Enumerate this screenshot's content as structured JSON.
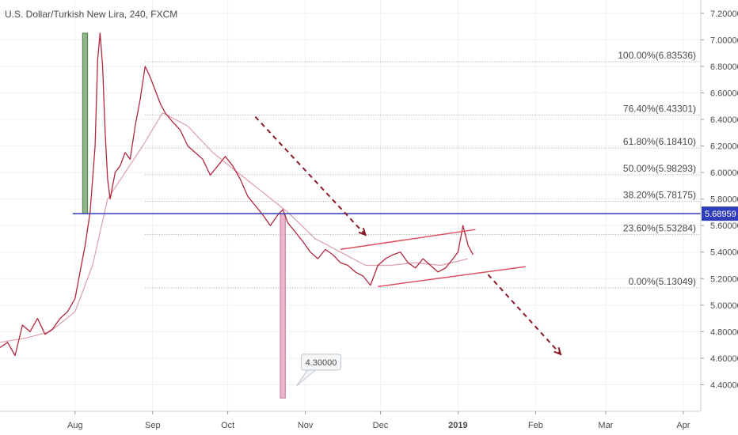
{
  "chart_data": {
    "type": "line",
    "title": "U.S. Dollar/Turkish New Lira, 240, FXCM",
    "x_tick_labels": [
      "Aug",
      "Sep",
      "Oct",
      "Nov",
      "Dec",
      "2019",
      "Feb",
      "Mar",
      "Apr"
    ],
    "x_tick_dates": [
      "2018-08-01",
      "2018-09-01",
      "2018-10-01",
      "2018-11-01",
      "2018-12-01",
      "2019-01-01",
      "2019-02-01",
      "2019-03-01",
      "2019-04-01"
    ],
    "xlim": [
      "2018-07-02",
      "2019-04-08"
    ],
    "ylim": [
      4.2,
      7.3
    ],
    "y_ticks": [
      4.4,
      4.6,
      4.8,
      5.0,
      5.2,
      5.4,
      5.6,
      5.8,
      6.0,
      6.2,
      6.4,
      6.6,
      6.8,
      7.0,
      7.2
    ],
    "y_tick_labels": [
      "4.40000",
      "4.60000",
      "4.80000",
      "5.00000",
      "5.20000",
      "5.40000",
      "5.60000",
      "5.80000",
      "6.00000",
      "6.20000",
      "6.40000",
      "6.60000",
      "6.80000",
      "7.00000",
      "7.20000"
    ],
    "grid": true,
    "price_series": {
      "color": "#b0273e",
      "x": [
        "2018-07-02",
        "2018-07-05",
        "2018-07-08",
        "2018-07-11",
        "2018-07-14",
        "2018-07-17",
        "2018-07-20",
        "2018-07-23",
        "2018-07-26",
        "2018-07-29",
        "2018-08-01",
        "2018-08-03",
        "2018-08-05",
        "2018-08-07",
        "2018-08-09",
        "2018-08-10",
        "2018-08-11",
        "2018-08-12",
        "2018-08-13",
        "2018-08-14",
        "2018-08-15",
        "2018-08-17",
        "2018-08-19",
        "2018-08-21",
        "2018-08-23",
        "2018-08-25",
        "2018-08-27",
        "2018-08-29",
        "2018-08-31",
        "2018-09-02",
        "2018-09-04",
        "2018-09-06",
        "2018-09-09",
        "2018-09-12",
        "2018-09-15",
        "2018-09-18",
        "2018-09-21",
        "2018-09-24",
        "2018-09-27",
        "2018-09-30",
        "2018-10-03",
        "2018-10-06",
        "2018-10-09",
        "2018-10-12",
        "2018-10-15",
        "2018-10-18",
        "2018-10-21",
        "2018-10-23",
        "2018-10-25",
        "2018-10-28",
        "2018-10-31",
        "2018-11-03",
        "2018-11-06",
        "2018-11-09",
        "2018-11-12",
        "2018-11-15",
        "2018-11-18",
        "2018-11-21",
        "2018-11-24",
        "2018-11-27",
        "2018-11-30",
        "2018-12-03",
        "2018-12-06",
        "2018-12-09",
        "2018-12-12",
        "2018-12-15",
        "2018-12-18",
        "2018-12-21",
        "2018-12-24",
        "2018-12-27",
        "2018-12-30",
        "2019-01-01",
        "2019-01-03",
        "2019-01-05",
        "2019-01-07"
      ],
      "y": [
        4.68,
        4.72,
        4.62,
        4.85,
        4.8,
        4.9,
        4.78,
        4.82,
        4.9,
        4.95,
        5.05,
        5.25,
        5.45,
        5.7,
        6.2,
        6.85,
        7.05,
        6.8,
        6.3,
        5.95,
        5.8,
        6.0,
        6.05,
        6.15,
        6.1,
        6.35,
        6.55,
        6.8,
        6.72,
        6.62,
        6.52,
        6.45,
        6.38,
        6.32,
        6.2,
        6.15,
        6.1,
        5.98,
        6.05,
        6.12,
        6.05,
        5.95,
        5.82,
        5.75,
        5.68,
        5.6,
        5.68,
        5.72,
        5.62,
        5.55,
        5.48,
        5.4,
        5.35,
        5.42,
        5.38,
        5.32,
        5.3,
        5.25,
        5.22,
        5.15,
        5.3,
        5.35,
        5.38,
        5.4,
        5.32,
        5.28,
        5.35,
        5.3,
        5.25,
        5.28,
        5.35,
        5.4,
        5.6,
        5.45,
        5.38
      ]
    },
    "moving_average": {
      "color": "#d9a0a8",
      "x": [
        "2018-07-02",
        "2018-07-12",
        "2018-07-22",
        "2018-08-01",
        "2018-08-08",
        "2018-08-14",
        "2018-08-21",
        "2018-08-28",
        "2018-09-05",
        "2018-09-15",
        "2018-09-25",
        "2018-10-05",
        "2018-10-15",
        "2018-10-25",
        "2018-11-05",
        "2018-11-15",
        "2018-11-25",
        "2018-12-05",
        "2018-12-15",
        "2018-12-25",
        "2019-01-05"
      ],
      "y": [
        4.72,
        4.75,
        4.8,
        4.95,
        5.3,
        5.8,
        6.0,
        6.2,
        6.45,
        6.35,
        6.15,
        6.0,
        5.85,
        5.7,
        5.5,
        5.4,
        5.3,
        5.3,
        5.32,
        5.3,
        5.35
      ]
    },
    "horizontal_level": {
      "value": 5.68959,
      "label": "5.68959",
      "color": "#2f3eb8",
      "x_start": "2018-07-31"
    },
    "fibonacci": {
      "x_start": "2018-08-29",
      "levels": [
        {
          "label": "100.00%(6.83536)",
          "value": 6.83536
        },
        {
          "label": "76.40%(6.43301)",
          "value": 6.43301
        },
        {
          "label": "61.80%(6.18410)",
          "value": 6.1841
        },
        {
          "label": "50.00%(5.98293)",
          "value": 5.98293
        },
        {
          "label": "38.20%(5.78175)",
          "value": 5.78175
        },
        {
          "label": "23.60%(5.53284)",
          "value": 5.53284
        },
        {
          "label": "0.00%(5.13049)",
          "value": 5.13049
        }
      ]
    },
    "channel": {
      "color": "#e05060",
      "upper": {
        "x": [
          "2018-11-15",
          "2019-01-08"
        ],
        "y": [
          5.42,
          5.57
        ]
      },
      "lower": {
        "x": [
          "2018-11-30",
          "2019-01-28"
        ],
        "y": [
          5.14,
          5.29
        ]
      }
    },
    "arrows": [
      {
        "color": "#8b1a2a",
        "x": [
          "2018-10-12",
          "2018-11-25"
        ],
        "y": [
          6.42,
          5.53
        ]
      },
      {
        "color": "#8b1a2a",
        "x": [
          "2019-01-13",
          "2019-02-11"
        ],
        "y": [
          5.23,
          4.63
        ]
      }
    ],
    "green_bar": {
      "color": "#7fa878",
      "x": [
        "2018-08-04",
        "2018-08-06"
      ],
      "y": [
        5.69,
        7.05
      ]
    },
    "pink_bar": {
      "color": "#e7a8c4",
      "x": [
        "2018-10-22",
        "2018-10-24"
      ],
      "y": [
        4.3,
        5.69
      ]
    },
    "callout": {
      "label": "4.30000",
      "x": "2018-10-31",
      "y": 4.57
    }
  }
}
